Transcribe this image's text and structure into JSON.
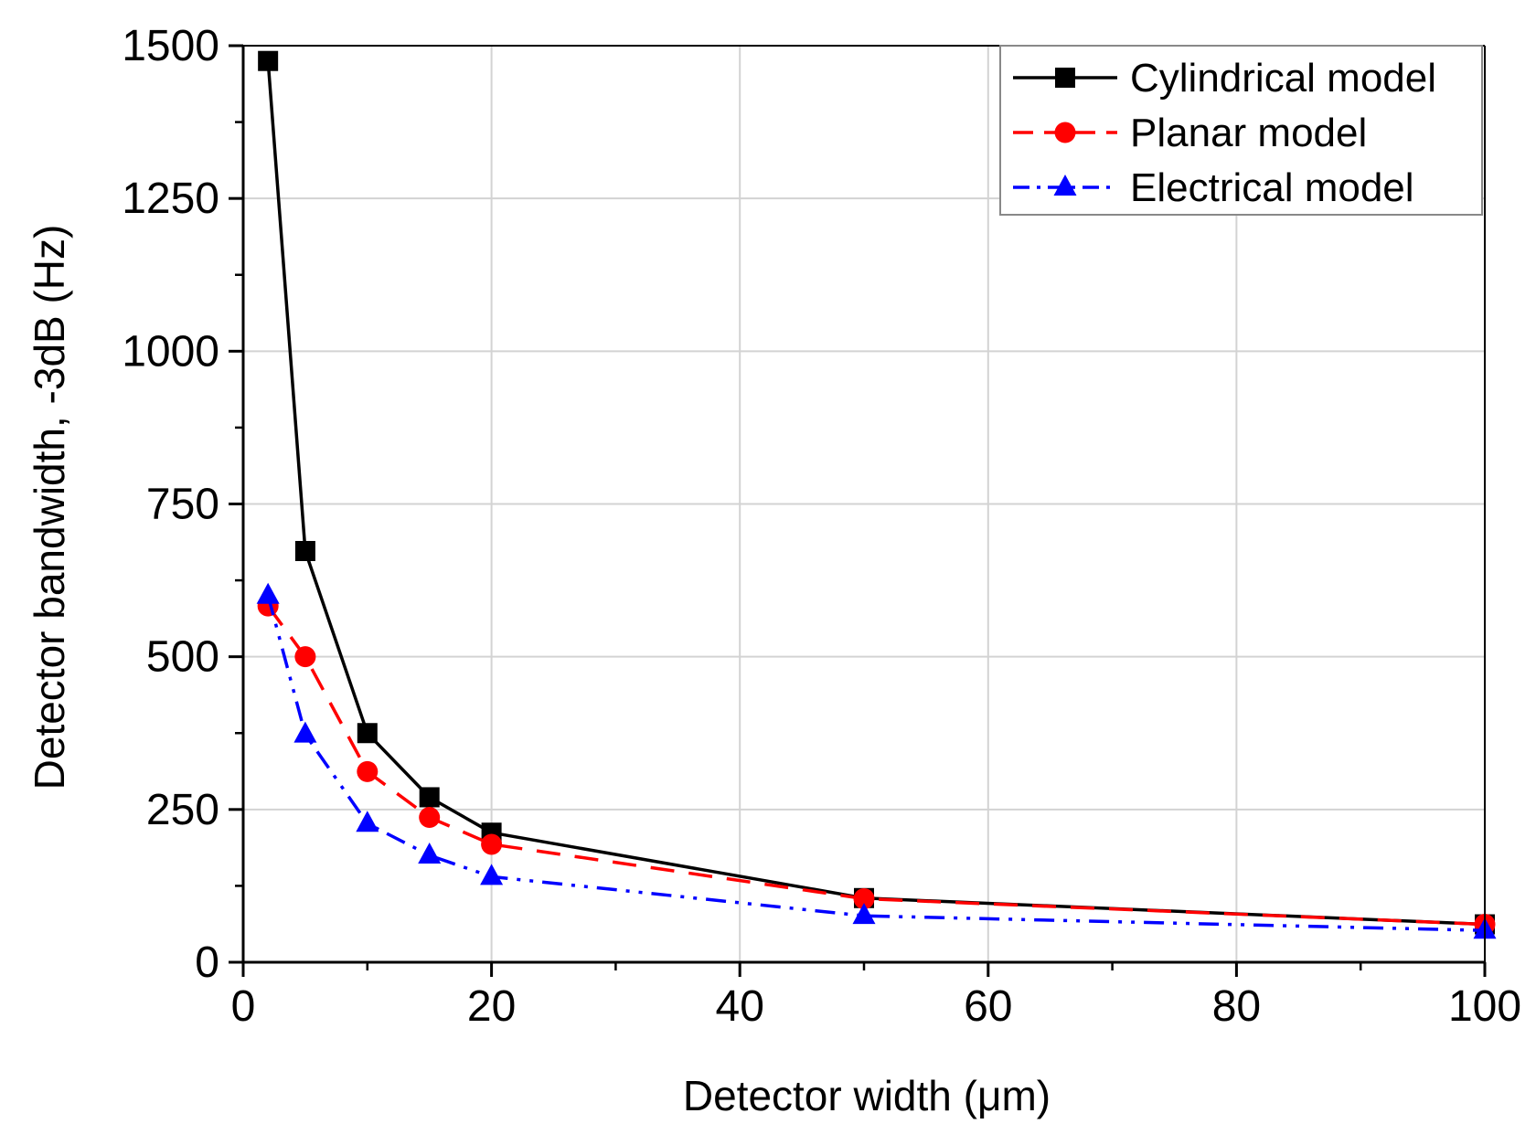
{
  "chart_data": {
    "type": "line",
    "title": "",
    "xlabel": "Detector width (μm)",
    "ylabel": "Detector bandwidth, -3dB (Hz)",
    "xlim": [
      0,
      100
    ],
    "ylim": [
      0,
      1500
    ],
    "xticks": [
      0,
      20,
      40,
      60,
      80,
      100
    ],
    "xtick_labels": [
      "0",
      "20",
      "40",
      "60",
      "80",
      "100"
    ],
    "x_minor_ticks": [
      10,
      30,
      50,
      70,
      90
    ],
    "yticks": [
      0,
      250,
      500,
      750,
      1000,
      1250,
      1500
    ],
    "ytick_labels": [
      "0",
      "250",
      "500",
      "750",
      "1000",
      "1250",
      "1500"
    ],
    "grid": true,
    "legend_position": "top-right",
    "series": [
      {
        "name": "Cylindrical model",
        "color": "#000000",
        "line_style": "solid",
        "marker": "square",
        "x": [
          2,
          5,
          10,
          15,
          20,
          50,
          100
        ],
        "y": [
          1475,
          673,
          375,
          270,
          212,
          105,
          62
        ]
      },
      {
        "name": "Planar model",
        "color": "#ff0000",
        "line_style": "dash",
        "marker": "circle",
        "x": [
          2,
          5,
          10,
          15,
          20,
          50,
          100
        ],
        "y": [
          583,
          500,
          312,
          237,
          193,
          104,
          62
        ]
      },
      {
        "name": "Electrical model",
        "color": "#0000ff",
        "line_style": "dash-dot-dot",
        "marker": "triangle",
        "x": [
          2,
          5,
          10,
          15,
          20,
          50,
          100
        ],
        "y": [
          600,
          373,
          227,
          175,
          140,
          76,
          52
        ]
      }
    ]
  }
}
